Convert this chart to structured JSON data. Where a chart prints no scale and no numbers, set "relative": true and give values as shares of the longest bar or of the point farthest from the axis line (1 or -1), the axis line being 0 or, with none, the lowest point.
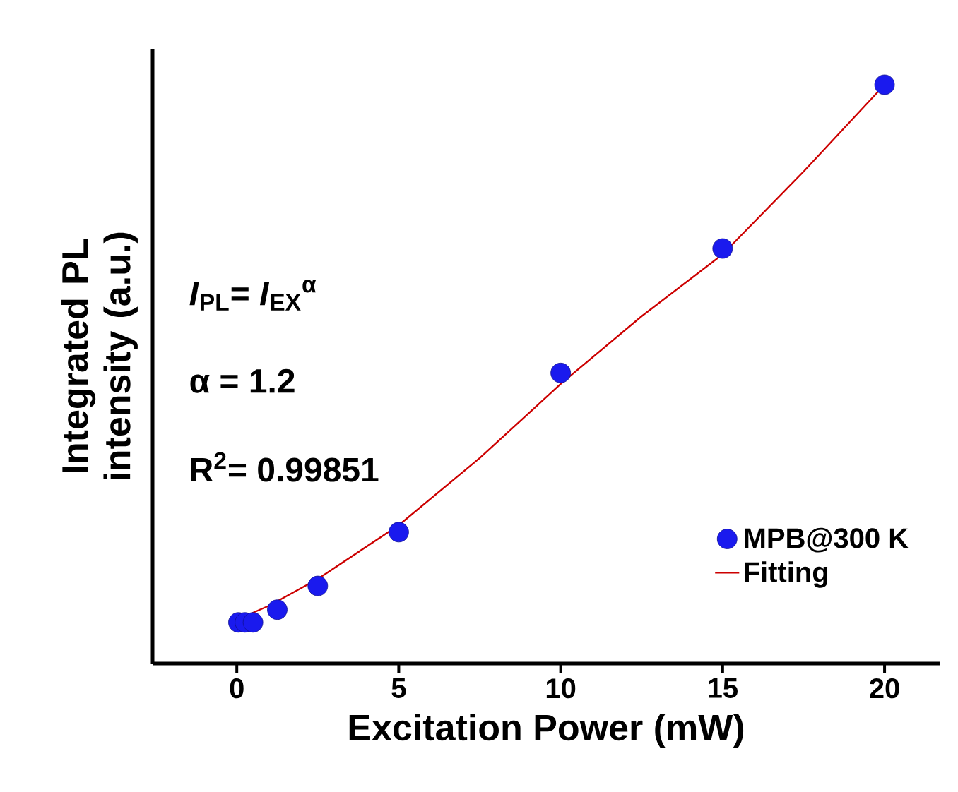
{
  "chart_data": {
    "type": "scatter",
    "relative": true,
    "xlabel": "Excitation Power (mW)",
    "ylabel": "Integrated PL intensity (a.u.)",
    "xlim": [
      -2.6,
      21.7
    ],
    "xticks": [
      0,
      5,
      10,
      15,
      20
    ],
    "series": [
      {
        "name": "MPB@300 K",
        "type": "scatter",
        "color": "#1a1aee",
        "marker": "circle",
        "x": [
          0.05,
          0.25,
          0.5,
          1.25,
          2.5,
          5,
          10,
          15,
          20
        ],
        "values": [
          0.071,
          0.071,
          0.071,
          0.093,
          0.134,
          0.227,
          0.502,
          0.717,
          1.0
        ]
      },
      {
        "name": "Fitting",
        "type": "line",
        "color": "#cc0000",
        "line_style": "solid",
        "x": [
          0.1,
          1,
          2.5,
          5,
          7.5,
          10,
          12.5,
          15,
          17.5,
          20
        ],
        "values": [
          0.078,
          0.1,
          0.146,
          0.239,
          0.355,
          0.483,
          0.6,
          0.707,
          0.85,
          1.0
        ]
      }
    ],
    "annotations": [
      "*I*$_{PL}$= *I*$_{EX}$$^{α}$",
      "α = 1.2",
      "R$^{2}$= 0.99851"
    ],
    "legend": "bottom right"
  }
}
